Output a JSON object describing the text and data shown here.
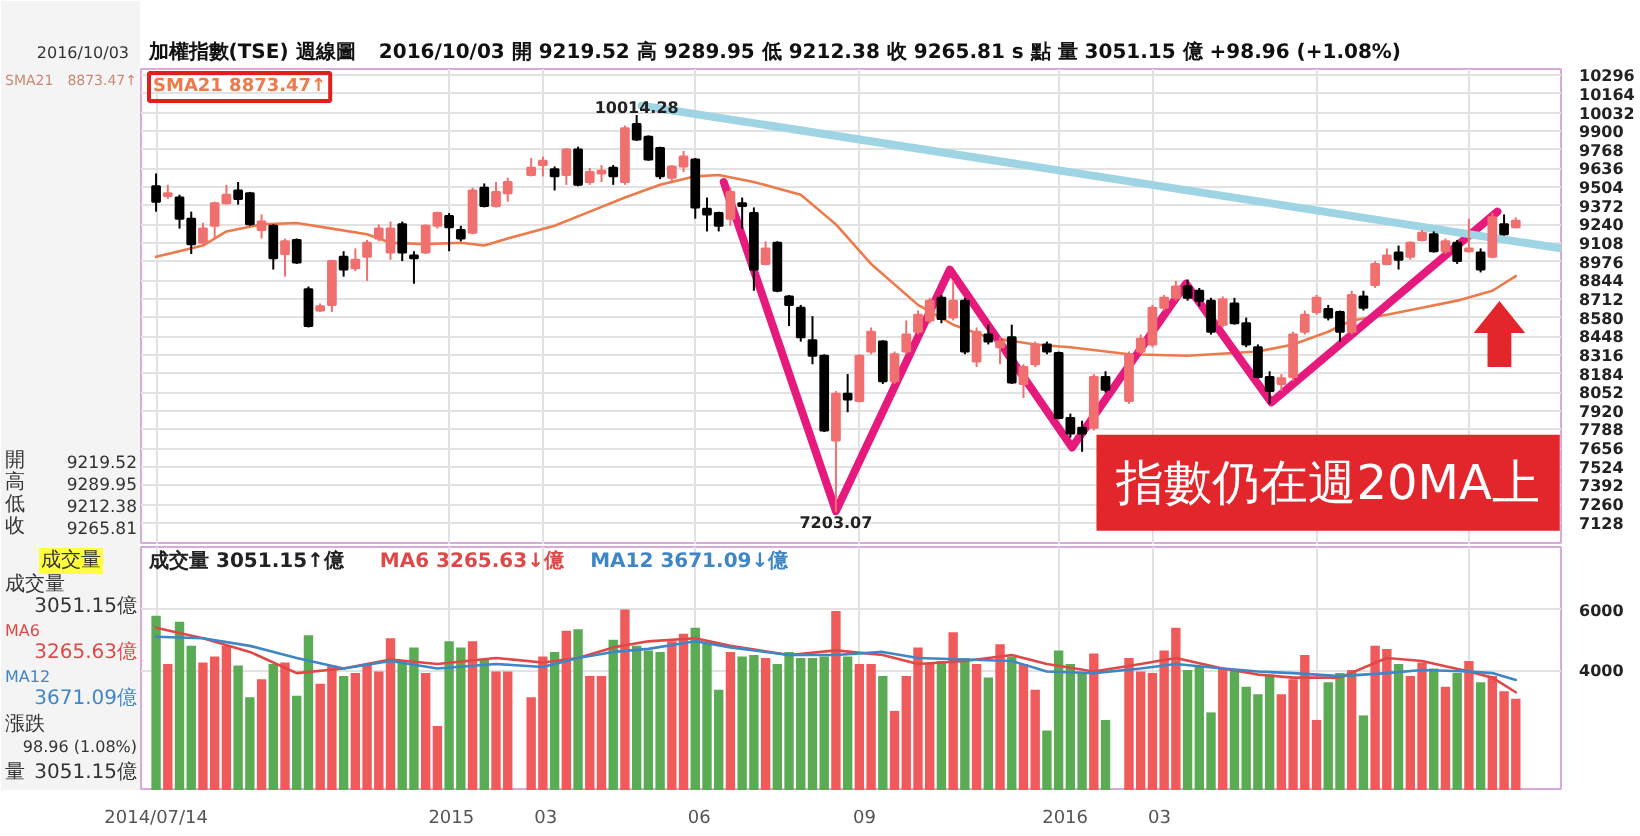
{
  "chart_data": [
    {
      "type": "candlestick",
      "title": "加權指數(TSE) 週線圖",
      "subtitle": "2016/10/03 開 9219.52 高 9289.95 低 9212.38 收 9265.81 s 點 量 3051.15 億 +98.96 (+1.08%)",
      "x": [
        "2014-07-14",
        "2014-07-21",
        "2014-07-28",
        "2014-08-04",
        "2014-08-11",
        "2014-08-18",
        "2014-08-25",
        "2014-09-01",
        "2014-09-08",
        "2014-09-15",
        "2014-09-22",
        "2014-09-29",
        "2014-10-06",
        "2014-10-13",
        "2014-10-20",
        "2014-10-27",
        "2014-11-03",
        "2014-11-10",
        "2014-11-17",
        "2014-11-24",
        "2014-12-01",
        "2014-12-08",
        "2014-12-15",
        "2014-12-22",
        "2014-12-29",
        "2015-01-05",
        "2015-01-12",
        "2015-01-19",
        "2015-01-26",
        "2015-02-02",
        "2015-02-09",
        "2015-02-23",
        "2015-03-02",
        "2015-03-09",
        "2015-03-16",
        "2015-03-23",
        "2015-03-30",
        "2015-04-06",
        "2015-04-13",
        "2015-04-20",
        "2015-04-27",
        "2015-05-04",
        "2015-05-11",
        "2015-05-18",
        "2015-05-25",
        "2015-06-01",
        "2015-06-08",
        "2015-06-15",
        "2015-06-22",
        "2015-06-29",
        "2015-07-06",
        "2015-07-13",
        "2015-07-20",
        "2015-07-27",
        "2015-08-03",
        "2015-08-10",
        "2015-08-17",
        "2015-08-24",
        "2015-08-31",
        "2015-09-07",
        "2015-09-14",
        "2015-09-21",
        "2015-09-28",
        "2015-10-05",
        "2015-10-12",
        "2015-10-19",
        "2015-10-26",
        "2015-11-02",
        "2015-11-09",
        "2015-11-16",
        "2015-11-23",
        "2015-11-30",
        "2015-12-07",
        "2015-12-14",
        "2015-12-21",
        "2015-12-28",
        "2016-01-04",
        "2016-01-11",
        "2016-01-18",
        "2016-01-25",
        "2016-02-01",
        "2016-02-15",
        "2016-02-22",
        "2016-02-29",
        "2016-03-07",
        "2016-03-14",
        "2016-03-21",
        "2016-03-28",
        "2016-04-04",
        "2016-04-11",
        "2016-04-18",
        "2016-04-25",
        "2016-05-02",
        "2016-05-09",
        "2016-05-16",
        "2016-05-23",
        "2016-05-30",
        "2016-06-06",
        "2016-06-13",
        "2016-06-20",
        "2016-06-27",
        "2016-07-04",
        "2016-07-11",
        "2016-07-18",
        "2016-07-25",
        "2016-08-01",
        "2016-08-08",
        "2016-08-15",
        "2016-08-22",
        "2016-08-29",
        "2016-09-05",
        "2016-09-12",
        "2016-09-19",
        "2016-09-26",
        "2016-10-03"
      ],
      "ohlc": [
        [
          9510,
          9600,
          9330,
          9400
        ],
        [
          9440,
          9520,
          9420,
          9460
        ],
        [
          9430,
          9450,
          9210,
          9280
        ],
        [
          9280,
          9330,
          9030,
          9100
        ],
        [
          9110,
          9250,
          9090,
          9210
        ],
        [
          9230,
          9400,
          9140,
          9390
        ],
        [
          9390,
          9520,
          9380,
          9450
        ],
        [
          9480,
          9540,
          9380,
          9420
        ],
        [
          9460,
          9470,
          9230,
          9240
        ],
        [
          9200,
          9310,
          9140,
          9260
        ],
        [
          9230,
          9240,
          8920,
          9000
        ],
        [
          9030,
          9140,
          8870,
          9120
        ],
        [
          9130,
          9140,
          8960,
          8970
        ],
        [
          8780,
          8800,
          8510,
          8520
        ],
        [
          8630,
          8680,
          8620,
          8660
        ],
        [
          8670,
          8990,
          8620,
          8980
        ],
        [
          9010,
          9050,
          8870,
          8920
        ],
        [
          8930,
          9070,
          8910,
          8990
        ],
        [
          9010,
          9130,
          8840,
          9110
        ],
        [
          9140,
          9240,
          9120,
          9210
        ],
        [
          9040,
          9260,
          8990,
          9210
        ],
        [
          9240,
          9260,
          8980,
          9040
        ],
        [
          9020,
          9050,
          8820,
          9000
        ],
        [
          9040,
          9240,
          9030,
          9230
        ],
        [
          9230,
          9330,
          9210,
          9320
        ],
        [
          9300,
          9320,
          9050,
          9220
        ],
        [
          9200,
          9230,
          9120,
          9140
        ],
        [
          9180,
          9500,
          9170,
          9480
        ],
        [
          9500,
          9530,
          9360,
          9370
        ],
        [
          9370,
          9540,
          9360,
          9470
        ],
        [
          9460,
          9570,
          9400,
          9540
        ],
        [
          9590,
          9710,
          9580,
          9640
        ],
        [
          9660,
          9720,
          9580,
          9690
        ],
        [
          9630,
          9650,
          9480,
          9580
        ],
        [
          9590,
          9780,
          9520,
          9770
        ],
        [
          9770,
          9790,
          9510,
          9520
        ],
        [
          9540,
          9640,
          9520,
          9610
        ],
        [
          9600,
          9660,
          9540,
          9620
        ],
        [
          9640,
          9660,
          9520,
          9580
        ],
        [
          9540,
          9940,
          9520,
          9920
        ],
        [
          9950,
          10014.28,
          9830,
          9840
        ],
        [
          9860,
          9870,
          9690,
          9700
        ],
        [
          9780,
          9790,
          9560,
          9580
        ],
        [
          9570,
          9660,
          9540,
          9650
        ],
        [
          9650,
          9760,
          9610,
          9720
        ],
        [
          9700,
          9710,
          9280,
          9360
        ],
        [
          9350,
          9430,
          9190,
          9310
        ],
        [
          9320,
          9330,
          9190,
          9230
        ],
        [
          9280,
          9500,
          9230,
          9470
        ],
        [
          9390,
          9430,
          9210,
          9370
        ],
        [
          9320,
          9360,
          8770,
          8920
        ],
        [
          8960,
          9120,
          8950,
          9070
        ],
        [
          9110,
          9120,
          8760,
          8770
        ],
        [
          8730,
          8740,
          8520,
          8670
        ],
        [
          8650,
          8670,
          8410,
          8440
        ],
        [
          8420,
          8590,
          8250,
          8310
        ],
        [
          8310,
          8320,
          7770,
          7780
        ],
        [
          7710,
          8060,
          7203.07,
          8040
        ],
        [
          8040,
          8180,
          7910,
          8000
        ],
        [
          7990,
          8320,
          7980,
          8310
        ],
        [
          8340,
          8510,
          8320,
          8480
        ],
        [
          8410,
          8420,
          8110,
          8130
        ],
        [
          8130,
          8340,
          8110,
          8320
        ],
        [
          8340,
          8560,
          8320,
          8460
        ],
        [
          8480,
          8630,
          8460,
          8600
        ],
        [
          8560,
          8720,
          8540,
          8700
        ],
        [
          8720,
          8740,
          8540,
          8570
        ],
        [
          8580,
          8840,
          8560,
          8700
        ],
        [
          8700,
          8720,
          8320,
          8340
        ],
        [
          8270,
          8510,
          8230,
          8480
        ],
        [
          8460,
          8530,
          8390,
          8410
        ],
        [
          8370,
          8440,
          8250,
          8410
        ],
        [
          8440,
          8530,
          8110,
          8120
        ],
        [
          8110,
          8250,
          8010,
          8230
        ],
        [
          8250,
          8410,
          8230,
          8390
        ],
        [
          8390,
          8410,
          8320,
          8340
        ],
        [
          8330,
          8340,
          7860,
          7870
        ],
        [
          7870,
          7900,
          7730,
          7760
        ],
        [
          7800,
          7850,
          7630,
          7760
        ],
        [
          7800,
          8180,
          7780,
          8160
        ],
        [
          8160,
          8200,
          8050,
          8070
        ],
        [
          7990,
          8340,
          7970,
          8320
        ],
        [
          8340,
          8460,
          8320,
          8430
        ],
        [
          8390,
          8670,
          8370,
          8650
        ],
        [
          8650,
          8740,
          8630,
          8720
        ],
        [
          8720,
          8840,
          8700,
          8800
        ],
        [
          8800,
          8850,
          8700,
          8720
        ],
        [
          8770,
          8790,
          8660,
          8700
        ],
        [
          8700,
          8720,
          8460,
          8480
        ],
        [
          8530,
          8730,
          8510,
          8710
        ],
        [
          8680,
          8720,
          8530,
          8540
        ],
        [
          8540,
          8580,
          8370,
          8390
        ],
        [
          8370,
          8390,
          8150,
          8160
        ],
        [
          8160,
          8200,
          7970,
          8060
        ],
        [
          8110,
          8180,
          8060,
          8150
        ],
        [
          8160,
          8480,
          8130,
          8460
        ],
        [
          8480,
          8630,
          8460,
          8600
        ],
        [
          8620,
          8740,
          8600,
          8720
        ],
        [
          8640,
          8670,
          8560,
          8580
        ],
        [
          8620,
          8630,
          8410,
          8480
        ],
        [
          8480,
          8770,
          8460,
          8740
        ],
        [
          8730,
          8770,
          8630,
          8650
        ],
        [
          8810,
          8980,
          8790,
          8960
        ],
        [
          8960,
          9070,
          8950,
          9020
        ],
        [
          9040,
          9090,
          8920,
          8990
        ],
        [
          9010,
          9120,
          8990,
          9110
        ],
        [
          9130,
          9200,
          9120,
          9180
        ],
        [
          9170,
          9190,
          9040,
          9050
        ],
        [
          9050,
          9140,
          9030,
          9120
        ],
        [
          9110,
          9130,
          8960,
          8980
        ],
        [
          9050,
          9280,
          9040,
          9070
        ],
        [
          9040,
          9070,
          8900,
          8920
        ],
        [
          9010,
          9320,
          9000,
          9290
        ],
        [
          9240,
          9310,
          9160,
          9170
        ],
        [
          9219.52,
          9289.95,
          9212.38,
          9265.81
        ]
      ],
      "colors": [
        "#000000",
        "#f07070",
        "#000000",
        "#000000",
        "#f07070",
        "#f07070",
        "#f07070",
        "#000000",
        "#000000",
        "#f07070",
        "#000000",
        "#f07070",
        "#000000",
        "#000000",
        "#f07070",
        "#f07070",
        "#000000",
        "#f07070",
        "#f07070",
        "#f07070",
        "#f07070",
        "#000000",
        "#000000",
        "#f07070",
        "#f07070",
        "#000000",
        "#000000",
        "#f07070",
        "#000000",
        "#f07070",
        "#f07070",
        "#f07070",
        "#f07070",
        "#000000",
        "#f07070",
        "#000000",
        "#f07070",
        "#f07070",
        "#000000",
        "#f07070",
        "#000000",
        "#000000",
        "#000000",
        "#f07070",
        "#f07070",
        "#000000",
        "#000000",
        "#000000",
        "#f07070",
        "#000000",
        "#000000",
        "#f07070",
        "#000000",
        "#000000",
        "#000000",
        "#000000",
        "#000000",
        "#f07070",
        "#000000",
        "#f07070",
        "#f07070",
        "#000000",
        "#f07070",
        "#f07070",
        "#f07070",
        "#f07070",
        "#000000",
        "#f07070",
        "#000000",
        "#f07070",
        "#000000",
        "#f07070",
        "#000000",
        "#f07070",
        "#f07070",
        "#000000",
        "#000000",
        "#000000",
        "#000000",
        "#f07070",
        "#000000",
        "#f07070",
        "#f07070",
        "#f07070",
        "#f07070",
        "#f07070",
        "#000000",
        "#000000",
        "#000000",
        "#f07070",
        "#000000",
        "#000000",
        "#000000",
        "#000000",
        "#f07070",
        "#f07070",
        "#f07070",
        "#f07070",
        "#000000",
        "#000000",
        "#f07070",
        "#000000",
        "#f07070",
        "#f07070",
        "#000000",
        "#f07070",
        "#f07070",
        "#000000",
        "#f07070",
        "#000000",
        "#f07070",
        "#000000",
        "#f07070",
        "#000000",
        "#f07070"
      ],
      "series": [
        {
          "type": "line",
          "name": "SMA21 8873.47↑",
          "color": "#ec7a4a",
          "x": [
            "2014-07-14",
            "2014-08-11",
            "2014-08-25",
            "2014-09-15",
            "2014-10-06",
            "2014-10-27",
            "2014-11-17",
            "2014-12-01",
            "2014-12-22",
            "2015-01-12",
            "2015-01-26",
            "2015-02-09",
            "2015-03-09",
            "2015-03-30",
            "2015-04-20",
            "2015-05-11",
            "2015-06-01",
            "2015-06-15",
            "2015-07-06",
            "2015-08-03",
            "2015-08-24",
            "2015-09-14",
            "2015-10-12",
            "2015-11-02",
            "2015-11-23",
            "2015-12-21",
            "2016-01-11",
            "2016-02-15",
            "2016-03-21",
            "2016-05-02",
            "2016-05-23",
            "2016-06-13",
            "2016-06-27",
            "2016-07-18",
            "2016-08-08",
            "2016-08-29",
            "2016-09-19",
            "2016-10-03"
          ],
          "values": [
            9010,
            9090,
            9190,
            9240,
            9250,
            9210,
            9170,
            9110,
            9100,
            9110,
            9090,
            9140,
            9230,
            9330,
            9430,
            9520,
            9580,
            9590,
            9540,
            9450,
            9240,
            8960,
            8670,
            8530,
            8440,
            8390,
            8370,
            8320,
            8310,
            8340,
            8390,
            8480,
            8560,
            8600,
            8650,
            8700,
            8770,
            8873.47
          ]
        },
        {
          "type": "line",
          "color": "#e6197d",
          "x": [
            "2015-06-18",
            "2015-08-24",
            "2015-10-31",
            "2016-01-12",
            "2016-03-20",
            "2016-05-10",
            "2016-09-22"
          ],
          "values": [
            9540,
            7210,
            8920,
            7660,
            8820,
            7980,
            9330
          ]
        },
        {
          "type": "line",
          "color": "#9fd4e4",
          "x": [
            "2015-04-30",
            "2016-10-30"
          ],
          "values": [
            10080,
            9070
          ]
        }
      ],
      "annotations": [
        {
          "text": "10014.28",
          "x": "2015-04-27",
          "y": 10014.28
        },
        {
          "text": "7203.07",
          "x": "2015-08-24",
          "y": 7203.07
        },
        "指數仍在週20MA上"
      ],
      "xlim": [
        "2014-07-05",
        "2016-10-30"
      ],
      "xticks": [
        {
          "value": "2014-07-14",
          "label": null
        },
        {
          "value": "2015-01-05",
          "label": null
        },
        {
          "value": "2015-03-02",
          "label": null
        },
        {
          "value": "2015-06-01",
          "label": null
        },
        {
          "value": "2015-09-07",
          "label": null
        },
        {
          "value": "2016-01-04",
          "label": null
        },
        {
          "value": "2016-02-29",
          "label": null
        },
        {
          "value": "2016-06-06",
          "label": null
        },
        {
          "value": "2016-09-05",
          "label": null
        }
      ],
      "ylim": [
        6970,
        10340
      ],
      "yticks": [
        10296,
        10164,
        10032,
        9900,
        9768,
        9636,
        9504,
        9372,
        9240,
        9108,
        8976,
        8844,
        8712,
        8580,
        8448,
        8316,
        8184,
        8052,
        7920,
        7788,
        7656,
        7524,
        7392,
        7260,
        7128
      ],
      "tick_labels": "y",
      "grid": true,
      "legend": "top left"
    },
    {
      "type": "bar",
      "x": [
        "2014-07-14",
        "2014-07-21",
        "2014-07-28",
        "2014-08-04",
        "2014-08-11",
        "2014-08-18",
        "2014-08-25",
        "2014-09-01",
        "2014-09-08",
        "2014-09-15",
        "2014-09-22",
        "2014-09-29",
        "2014-10-06",
        "2014-10-13",
        "2014-10-20",
        "2014-10-27",
        "2014-11-03",
        "2014-11-10",
        "2014-11-17",
        "2014-11-24",
        "2014-12-01",
        "2014-12-08",
        "2014-12-15",
        "2014-12-22",
        "2014-12-29",
        "2015-01-05",
        "2015-01-12",
        "2015-01-19",
        "2015-01-26",
        "2015-02-02",
        "2015-02-09",
        "2015-02-23",
        "2015-03-02",
        "2015-03-09",
        "2015-03-16",
        "2015-03-23",
        "2015-03-30",
        "2015-04-06",
        "2015-04-13",
        "2015-04-20",
        "2015-04-27",
        "2015-05-04",
        "2015-05-11",
        "2015-05-18",
        "2015-05-25",
        "2015-06-01",
        "2015-06-08",
        "2015-06-15",
        "2015-06-22",
        "2015-06-29",
        "2015-07-06",
        "2015-07-13",
        "2015-07-20",
        "2015-07-27",
        "2015-08-03",
        "2015-08-10",
        "2015-08-17",
        "2015-08-24",
        "2015-08-31",
        "2015-09-07",
        "2015-09-14",
        "2015-09-21",
        "2015-09-28",
        "2015-10-05",
        "2015-10-12",
        "2015-10-19",
        "2015-10-26",
        "2015-11-02",
        "2015-11-09",
        "2015-11-16",
        "2015-11-23",
        "2015-11-30",
        "2015-12-07",
        "2015-12-14",
        "2015-12-21",
        "2015-12-28",
        "2016-01-04",
        "2016-01-11",
        "2016-01-18",
        "2016-01-25",
        "2016-02-01",
        "2016-02-15",
        "2016-02-22",
        "2016-02-29",
        "2016-03-07",
        "2016-03-14",
        "2016-03-21",
        "2016-03-28",
        "2016-04-04",
        "2016-04-11",
        "2016-04-18",
        "2016-04-25",
        "2016-05-02",
        "2016-05-09",
        "2016-05-16",
        "2016-05-23",
        "2016-05-30",
        "2016-06-06",
        "2016-06-13",
        "2016-06-20",
        "2016-06-27",
        "2016-07-04",
        "2016-07-11",
        "2016-07-18",
        "2016-07-25",
        "2016-08-01",
        "2016-08-08",
        "2016-08-15",
        "2016-08-22",
        "2016-08-29",
        "2016-09-05",
        "2016-09-12",
        "2016-09-19",
        "2016-09-26",
        "2016-10-03"
      ],
      "series": [
        {
          "type": "bar",
          "name": "成交量 3051.15↑億",
          "values": [
            5800,
            4200,
            5600,
            4800,
            4250,
            4450,
            4800,
            4150,
            3100,
            3700,
            4200,
            4250,
            3150,
            5150,
            3550,
            4150,
            3800,
            3900,
            4200,
            3950,
            5050,
            4300,
            4750,
            3900,
            2150,
            4950,
            4750,
            4950,
            4350,
            3950,
            3950,
            3100,
            4450,
            4600,
            5300,
            5350,
            3800,
            3800,
            5000,
            6000,
            4800,
            4650,
            4600,
            4950,
            5200,
            5400,
            4900,
            3350,
            4600,
            4450,
            4500,
            4400,
            4200,
            4600,
            4400,
            4400,
            4450,
            5950,
            4450,
            4200,
            4200,
            3800,
            2650,
            3800,
            4750,
            4200,
            4300,
            5250,
            4400,
            4200,
            3750,
            4850,
            4450,
            4200,
            3350,
            2000,
            4650,
            4200,
            3900,
            4550,
            2350,
            4400,
            3950,
            3900,
            4650,
            5400,
            4000,
            4100,
            2600,
            4050,
            4000,
            3450,
            3200,
            3850,
            3200,
            3700,
            4500,
            2350,
            3600,
            3900,
            4000,
            2500,
            4800,
            4700,
            4200,
            3800,
            4250,
            4050,
            3450,
            3900,
            4300,
            3600,
            3800,
            3300,
            3051.15
          ],
          "colors": [
            "#5aab54",
            "#ef5a5a",
            "#5aab54",
            "#5aab54",
            "#ef5a5a",
            "#ef5a5a",
            "#ef5a5a",
            "#5aab54",
            "#5aab54",
            "#ef5a5a",
            "#5aab54",
            "#ef5a5a",
            "#5aab54",
            "#5aab54",
            "#ef5a5a",
            "#ef5a5a",
            "#5aab54",
            "#ef5a5a",
            "#ef5a5a",
            "#ef5a5a",
            "#ef5a5a",
            "#5aab54",
            "#5aab54",
            "#ef5a5a",
            "#ef5a5a",
            "#5aab54",
            "#5aab54",
            "#ef5a5a",
            "#5aab54",
            "#ef5a5a",
            "#ef5a5a",
            "#ef5a5a",
            "#ef5a5a",
            "#5aab54",
            "#ef5a5a",
            "#5aab54",
            "#ef5a5a",
            "#ef5a5a",
            "#5aab54",
            "#ef5a5a",
            "#5aab54",
            "#5aab54",
            "#5aab54",
            "#ef5a5a",
            "#ef5a5a",
            "#5aab54",
            "#5aab54",
            "#5aab54",
            "#ef5a5a",
            "#5aab54",
            "#5aab54",
            "#ef5a5a",
            "#5aab54",
            "#5aab54",
            "#5aab54",
            "#5aab54",
            "#5aab54",
            "#ef5a5a",
            "#5aab54",
            "#ef5a5a",
            "#ef5a5a",
            "#5aab54",
            "#ef5a5a",
            "#ef5a5a",
            "#ef5a5a",
            "#ef5a5a",
            "#5aab54",
            "#ef5a5a",
            "#5aab54",
            "#ef5a5a",
            "#5aab54",
            "#ef5a5a",
            "#5aab54",
            "#ef5a5a",
            "#ef5a5a",
            "#5aab54",
            "#5aab54",
            "#5aab54",
            "#5aab54",
            "#ef5a5a",
            "#5aab54",
            "#ef5a5a",
            "#ef5a5a",
            "#ef5a5a",
            "#ef5a5a",
            "#ef5a5a",
            "#5aab54",
            "#5aab54",
            "#5aab54",
            "#ef5a5a",
            "#5aab54",
            "#5aab54",
            "#5aab54",
            "#5aab54",
            "#ef5a5a",
            "#ef5a5a",
            "#ef5a5a",
            "#ef5a5a",
            "#5aab54",
            "#5aab54",
            "#ef5a5a",
            "#5aab54",
            "#ef5a5a",
            "#ef5a5a",
            "#5aab54",
            "#ef5a5a",
            "#ef5a5a",
            "#5aab54",
            "#ef5a5a",
            "#5aab54",
            "#ef5a5a",
            "#5aab54",
            "#ef5a5a",
            "#ef5a5a",
            "#ef5a5a"
          ]
        },
        {
          "type": "line",
          "name": "MA6 3265.63↓億",
          "color": "#e04848",
          "x": [
            "2014-07-14",
            "2014-08-11",
            "2014-09-08",
            "2014-10-06",
            "2014-11-03",
            "2014-12-01",
            "2014-12-29",
            "2015-02-02",
            "2015-03-02",
            "2015-03-23",
            "2015-04-13",
            "2015-05-04",
            "2015-06-01",
            "2015-06-22",
            "2015-07-27",
            "2015-08-24",
            "2015-09-21",
            "2015-10-12",
            "2015-11-09",
            "2015-12-07",
            "2015-12-28",
            "2016-01-25",
            "2016-02-22",
            "2016-03-14",
            "2016-04-11",
            "2016-05-02",
            "2016-05-23",
            "2016-06-20",
            "2016-07-18",
            "2016-08-08",
            "2016-09-05",
            "2016-09-19",
            "2016-10-03"
          ],
          "values": [
            5400,
            5050,
            4600,
            3900,
            4050,
            4350,
            4200,
            4400,
            4250,
            4400,
            4750,
            4950,
            5050,
            4800,
            4500,
            4650,
            4500,
            4200,
            4300,
            4500,
            4200,
            3950,
            4200,
            4400,
            4050,
            3850,
            3750,
            3750,
            4400,
            4300,
            3950,
            3750,
            3265.63
          ]
        },
        {
          "type": "line",
          "name": "MA12 3671.09↓億",
          "color": "#3f86c6",
          "x": [
            "2014-07-14",
            "2014-08-11",
            "2014-09-08",
            "2014-10-06",
            "2014-11-03",
            "2014-12-01",
            "2014-12-29",
            "2015-02-02",
            "2015-03-02",
            "2015-03-23",
            "2015-04-13",
            "2015-05-04",
            "2015-06-01",
            "2015-06-22",
            "2015-07-27",
            "2015-08-24",
            "2015-09-21",
            "2015-10-12",
            "2015-11-09",
            "2015-12-07",
            "2015-12-28",
            "2016-01-25",
            "2016-02-22",
            "2016-03-14",
            "2016-04-11",
            "2016-05-02",
            "2016-05-23",
            "2016-06-20",
            "2016-07-18",
            "2016-08-08",
            "2016-09-05",
            "2016-09-19",
            "2016-10-03"
          ],
          "values": [
            5100,
            5050,
            4800,
            4400,
            4050,
            4300,
            4050,
            4200,
            4100,
            4400,
            4600,
            4700,
            4950,
            4750,
            4500,
            4500,
            4600,
            4400,
            4350,
            4300,
            3950,
            3900,
            4050,
            4200,
            4050,
            3950,
            3900,
            3800,
            3900,
            4000,
            3950,
            3900,
            3671.09
          ]
        }
      ],
      "xlim": [
        "2014-07-05",
        "2016-10-30"
      ],
      "xticks": [
        {
          "value": "2014-07-14",
          "label": "2014/07/14"
        },
        {
          "value": "2015-01-05",
          "label": "2015"
        },
        {
          "value": "2015-03-02",
          "label": "03"
        },
        {
          "value": "2015-06-01",
          "label": "06"
        },
        {
          "value": "2015-09-07",
          "label": "09"
        },
        {
          "value": "2016-01-04",
          "label": "2016"
        },
        {
          "value": "2016-02-29",
          "label": "03"
        },
        {
          "value": "2016-06-06",
          "label": null
        },
        {
          "value": "2016-09-05",
          "label": null
        }
      ],
      "ylim": [
        0,
        8070
      ],
      "yticks": [
        4000,
        6000
      ],
      "grid": true,
      "legend": "top left"
    },
    {
      "type": "other",
      "annotations": [
        "2016/10/03",
        "SMA21",
        "8873.47↑",
        "開",
        "9219.52",
        "高",
        "9289.95",
        "低",
        "9212.38",
        "收",
        "9265.81",
        "成交量",
        "成交量",
        "3051.15億",
        "MA6",
        "3265.63億",
        "MA12",
        "3671.09億",
        "漲跌",
        "98.96 (1.08%)",
        "量",
        "3051.15億"
      ]
    }
  ]
}
